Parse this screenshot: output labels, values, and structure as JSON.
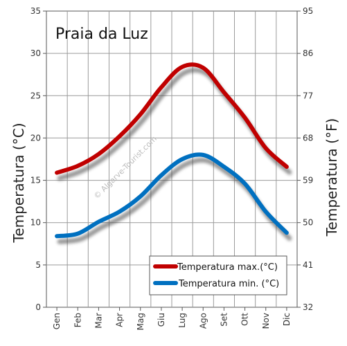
{
  "chart_data": {
    "type": "line",
    "title": "Praia da Luz",
    "watermark": "© Algarve-Tourist.com",
    "categories": [
      "Gen",
      "Feb",
      "Mar",
      "Apr",
      "Mag",
      "Giu",
      "Lug",
      "Ago",
      "Set",
      "Ott",
      "Nov",
      "Dic"
    ],
    "ylabel_left": "Temperatura (°C)",
    "ylabel_right": "Temperatura (°F)",
    "ylim": [
      0,
      35
    ],
    "left_ticks": [
      "0",
      "5",
      "10",
      "15",
      "20",
      "25",
      "30",
      "35"
    ],
    "right_ticks": [
      "32",
      "41",
      "50",
      "59",
      "68",
      "77",
      "86",
      "95"
    ],
    "grid": true,
    "legend_position": "bottom-right",
    "series": [
      {
        "name": "Temperatura max.(°C)",
        "color": "#c00000",
        "values": [
          15.9,
          16.7,
          18.1,
          20.2,
          22.8,
          26.0,
          28.4,
          28.3,
          25.4,
          22.4,
          18.8,
          16.6
        ]
      },
      {
        "name": "Temperatura min. (°C)",
        "color": "#0070c0",
        "values": [
          8.4,
          8.7,
          10.1,
          11.3,
          13.1,
          15.6,
          17.5,
          18.0,
          16.6,
          14.6,
          11.3,
          8.8
        ]
      }
    ]
  }
}
